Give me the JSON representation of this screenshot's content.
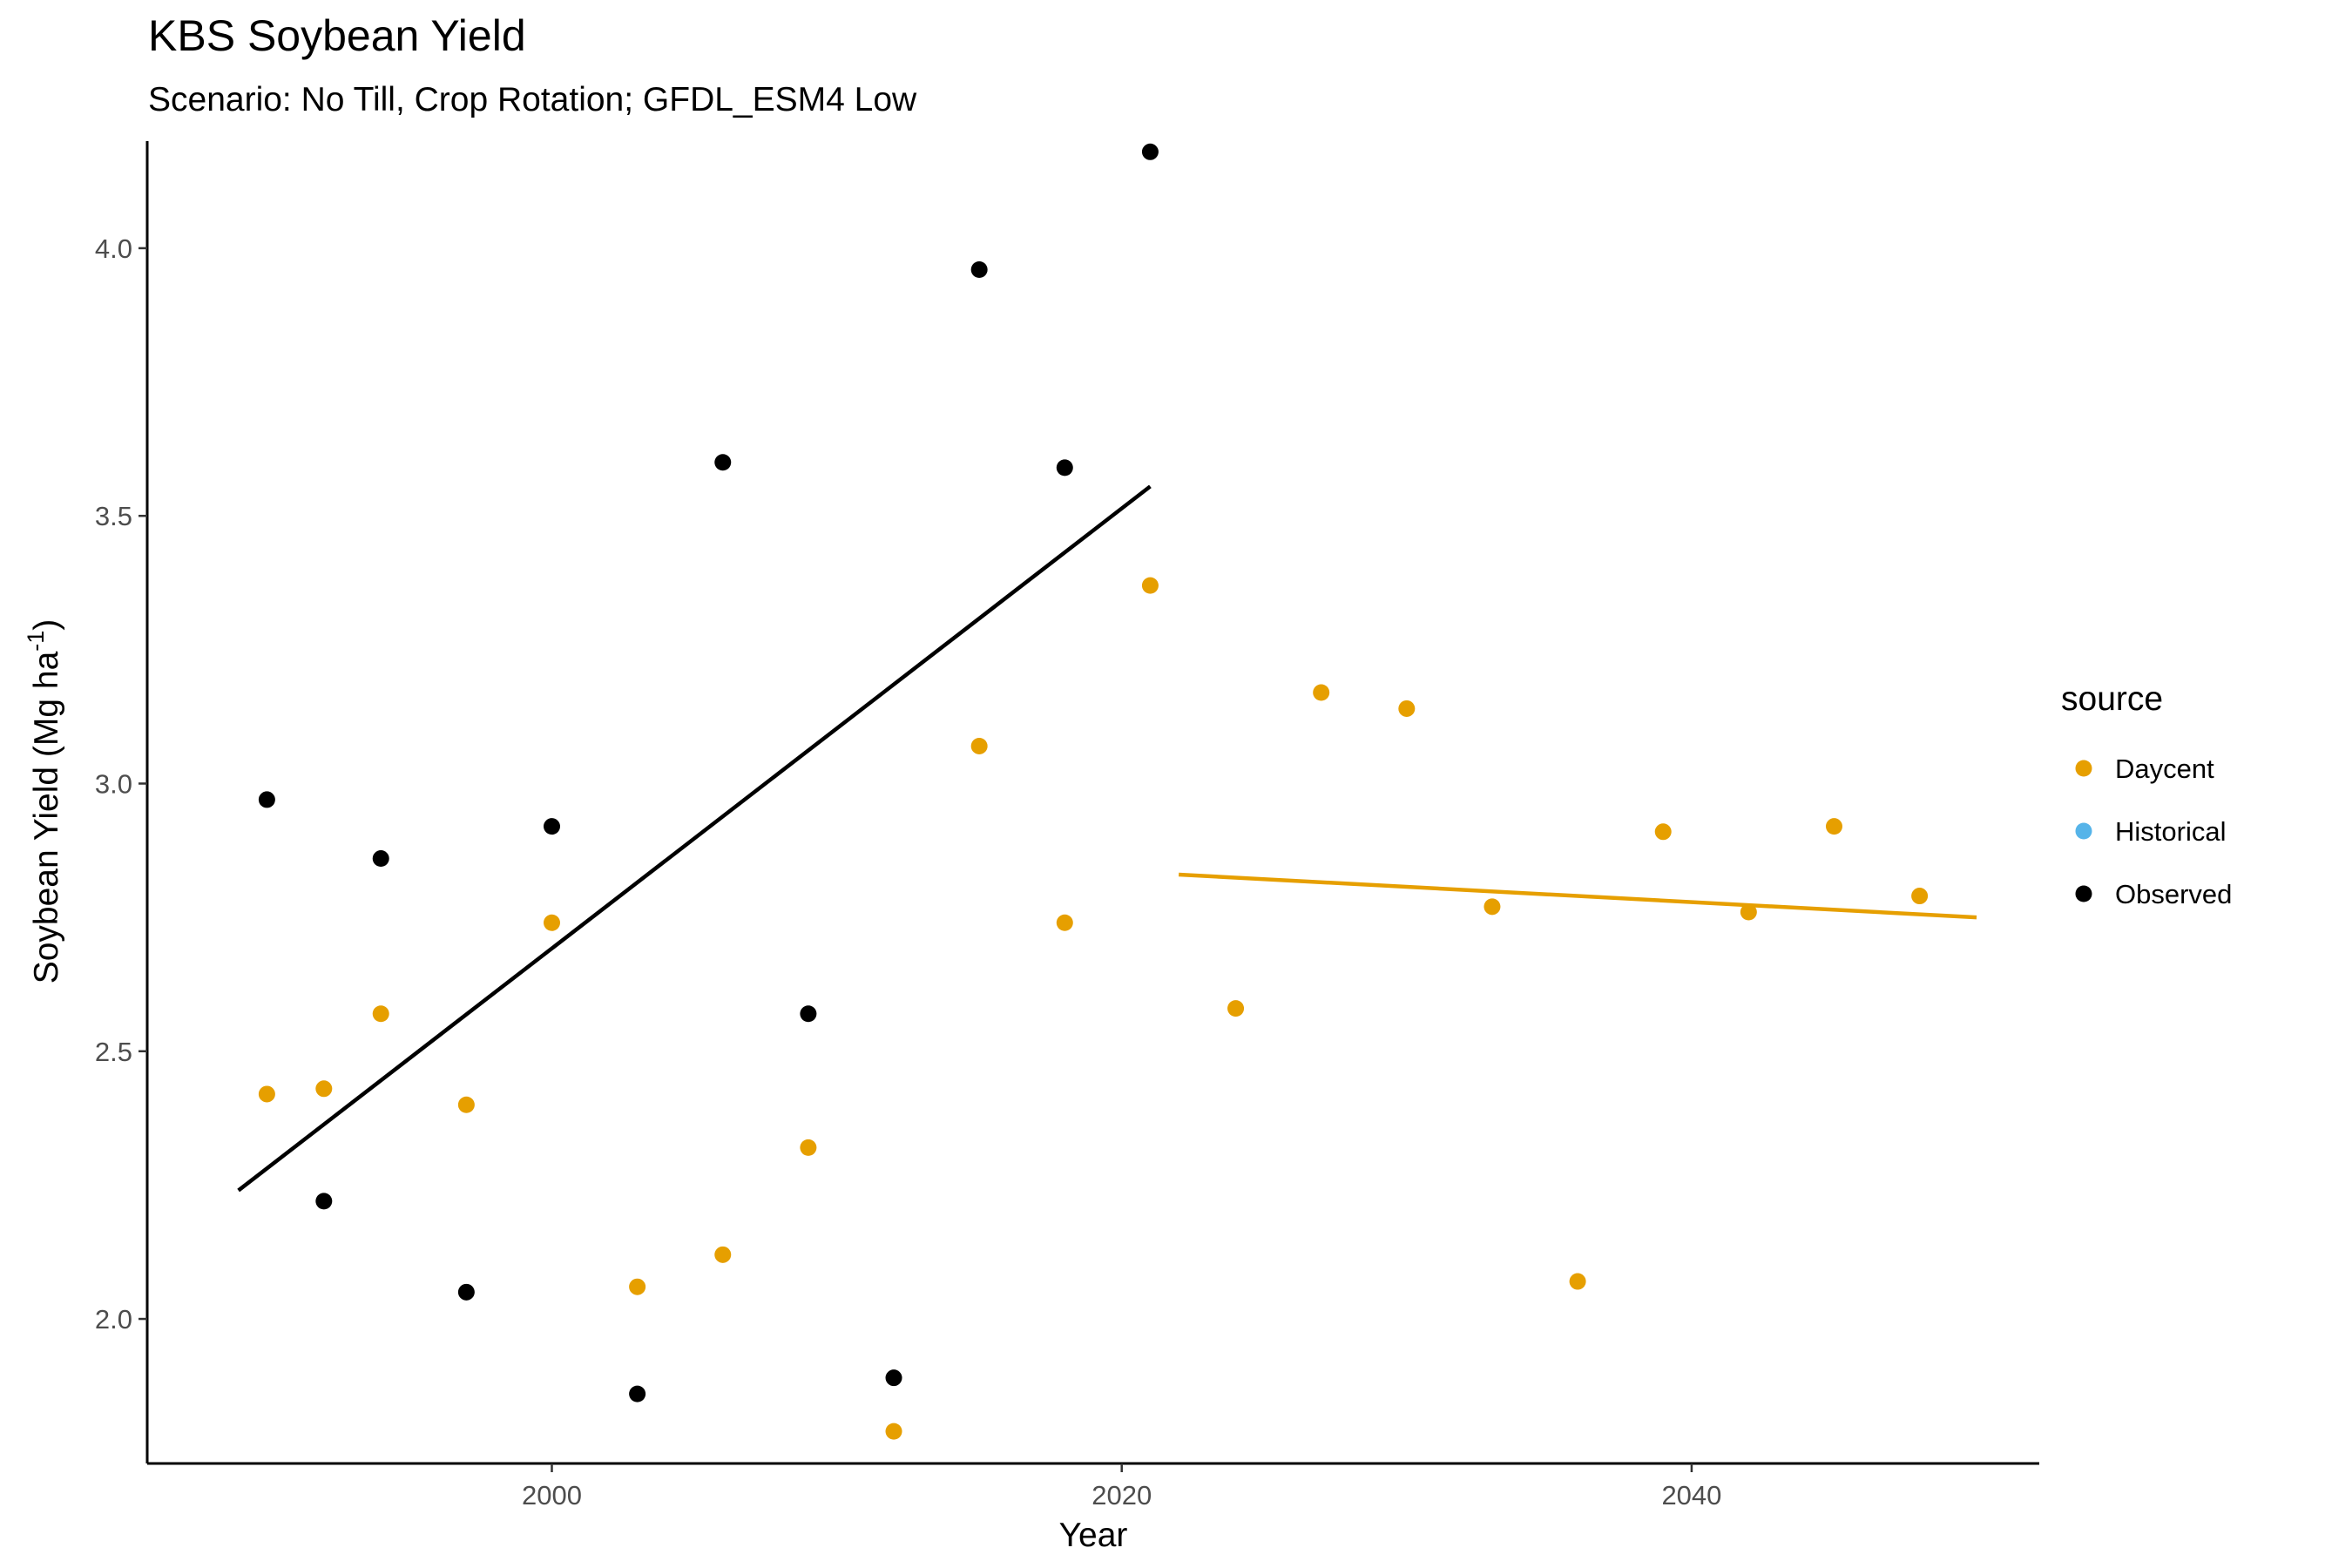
{
  "chart_data": {
    "type": "scatter",
    "title": "KBS Soybean Yield",
    "subtitle": "Scenario: No Till, Crop Rotation; GFDL_ESM4 Low",
    "xlabel": "Year",
    "ylabel_main": "Soybean Yield (Mg ha",
    "ylabel_sup": "-1",
    "ylabel_close": ")",
    "xlim": [
      1985.8,
      2052.2
    ],
    "ylim": [
      1.73,
      4.2
    ],
    "xticks": [
      2000,
      2020,
      2040
    ],
    "yticks": [
      2.0,
      2.5,
      3.0,
      3.5,
      4.0
    ],
    "xtick_labels": [
      "2000",
      "2020",
      "2040"
    ],
    "ytick_labels": [
      "2.0",
      "2.5",
      "3.0",
      "3.5",
      "4.0"
    ],
    "grid": false,
    "legend": {
      "title": "source",
      "position": "right",
      "entries": [
        {
          "label": "Daycent",
          "color": "#E69F00"
        },
        {
          "label": "Historical",
          "color": "#56B4E9"
        },
        {
          "label": "Observed",
          "color": "#000000"
        }
      ]
    },
    "series": [
      {
        "name": "Daycent",
        "color": "#E69F00",
        "points": [
          [
            1990,
            2.42
          ],
          [
            1992,
            2.43
          ],
          [
            1994,
            2.57
          ],
          [
            1997,
            2.4
          ],
          [
            2000,
            2.74
          ],
          [
            2003,
            2.06
          ],
          [
            2006,
            2.12
          ],
          [
            2009,
            2.32
          ],
          [
            2012,
            1.79
          ],
          [
            2015,
            3.07
          ],
          [
            2018,
            2.74
          ],
          [
            2021,
            3.37
          ],
          [
            2024,
            2.58
          ],
          [
            2027,
            3.17
          ],
          [
            2030,
            3.14
          ],
          [
            2033,
            2.77
          ],
          [
            2036,
            2.07
          ],
          [
            2039,
            2.91
          ],
          [
            2042,
            2.76
          ],
          [
            2045,
            2.92
          ],
          [
            2048,
            2.79
          ]
        ]
      },
      {
        "name": "Historical",
        "color": "#56B4E9",
        "points": []
      },
      {
        "name": "Observed",
        "color": "#000000",
        "points": [
          [
            1990,
            2.97
          ],
          [
            1992,
            2.22
          ],
          [
            1994,
            2.86
          ],
          [
            1997,
            2.05
          ],
          [
            2000,
            2.92
          ],
          [
            2003,
            1.86
          ],
          [
            2006,
            3.6
          ],
          [
            2009,
            2.57
          ],
          [
            2012,
            1.89
          ],
          [
            2015,
            3.96
          ],
          [
            2018,
            3.59
          ],
          [
            2021,
            4.18
          ]
        ]
      }
    ],
    "trend_lines": [
      {
        "color": "#000000",
        "x": [
          1989,
          2021
        ],
        "y": [
          2.24,
          3.555
        ]
      },
      {
        "color": "#E69F00",
        "x": [
          2022,
          2050
        ],
        "y": [
          2.83,
          2.75
        ]
      }
    ]
  }
}
